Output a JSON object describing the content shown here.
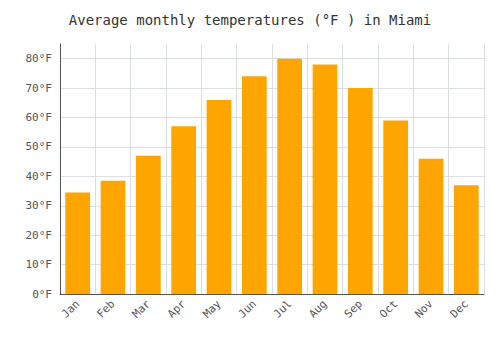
{
  "chart_data": {
    "type": "bar",
    "title": "Average monthly temperatures (°F ) in Miami",
    "categories": [
      "Jan",
      "Feb",
      "Mar",
      "Apr",
      "May",
      "Jun",
      "Jul",
      "Aug",
      "Sep",
      "Oct",
      "Nov",
      "Dec"
    ],
    "values": [
      34.5,
      38.5,
      47,
      57,
      66,
      74,
      80,
      78,
      70,
      59,
      46,
      37
    ],
    "color": "#FFA500",
    "ylim": [
      0,
      85
    ],
    "yticks": [
      {
        "value": 0,
        "label": "0°F"
      },
      {
        "value": 10,
        "label": "10°F"
      },
      {
        "value": 20,
        "label": "20°F"
      },
      {
        "value": 30,
        "label": "30°F"
      },
      {
        "value": 40,
        "label": "40°F"
      },
      {
        "value": 50,
        "label": "50°F"
      },
      {
        "value": 60,
        "label": "60°F"
      },
      {
        "value": 70,
        "label": "70°F"
      },
      {
        "value": 80,
        "label": "80°F"
      }
    ],
    "grid": true
  }
}
